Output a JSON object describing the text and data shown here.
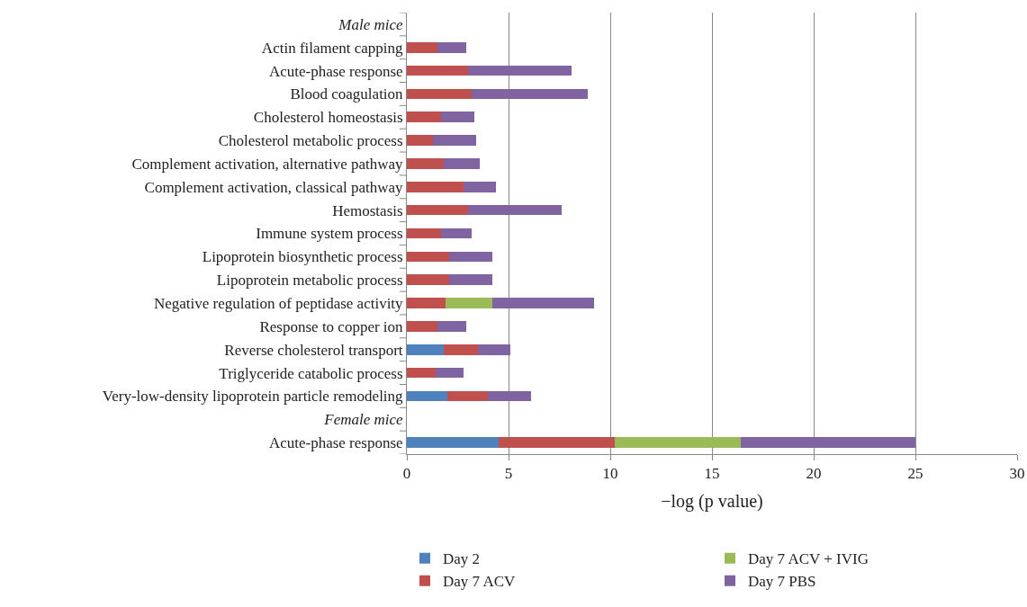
{
  "chart_data": {
    "type": "bar",
    "orientation": "horizontal",
    "stacked": true,
    "categories": [
      "Male mice",
      "Actin filament capping",
      "Acute-phase response",
      "Blood coagulation",
      "Cholesterol homeostasis",
      "Cholesterol metabolic process",
      "Complement activation, alternative pathway",
      "Complement activation, classical pathway",
      "Hemostasis",
      "Immune system process",
      "Lipoprotein biosynthetic process",
      "Lipoprotein metabolic process",
      "Negative regulation of peptidase activity",
      "Response to copper ion",
      "Reverse cholesterol transport",
      "Triglyceride catabolic process",
      "Very-low-density lipoprotein particle remodeling",
      "Female mice",
      "Acute-phase response"
    ],
    "series": [
      {
        "name": "Day 2",
        "color": "#4f81bd",
        "values": [
          null,
          null,
          null,
          null,
          null,
          null,
          null,
          null,
          null,
          null,
          null,
          null,
          null,
          null,
          1.8,
          null,
          2.0,
          null,
          4.5
        ]
      },
      {
        "name": "Day 7 ACV",
        "color": "#c0504d",
        "values": [
          null,
          1.5,
          3.0,
          3.2,
          1.7,
          1.3,
          1.8,
          2.8,
          3.0,
          1.7,
          2.1,
          2.1,
          1.9,
          1.5,
          1.7,
          1.4,
          2.0,
          null,
          5.7
        ]
      },
      {
        "name": "Day 7 ACV + IVIG",
        "color": "#9bbb59",
        "values": [
          null,
          null,
          null,
          null,
          null,
          null,
          null,
          null,
          null,
          null,
          null,
          null,
          2.3,
          null,
          null,
          null,
          null,
          null,
          6.2
        ]
      },
      {
        "name": "Day 7 PBS",
        "color": "#8064a2",
        "values": [
          null,
          1.4,
          5.1,
          5.7,
          1.6,
          2.1,
          1.8,
          1.6,
          4.6,
          1.5,
          2.1,
          2.1,
          5.0,
          1.4,
          1.6,
          1.4,
          2.1,
          null,
          8.6
        ]
      }
    ],
    "xlabel": "−log (p value)",
    "xlim": [
      0,
      30
    ],
    "xticks": [
      0,
      5,
      10,
      15,
      20,
      25,
      30
    ],
    "grid": "x",
    "legend": "bottom"
  }
}
